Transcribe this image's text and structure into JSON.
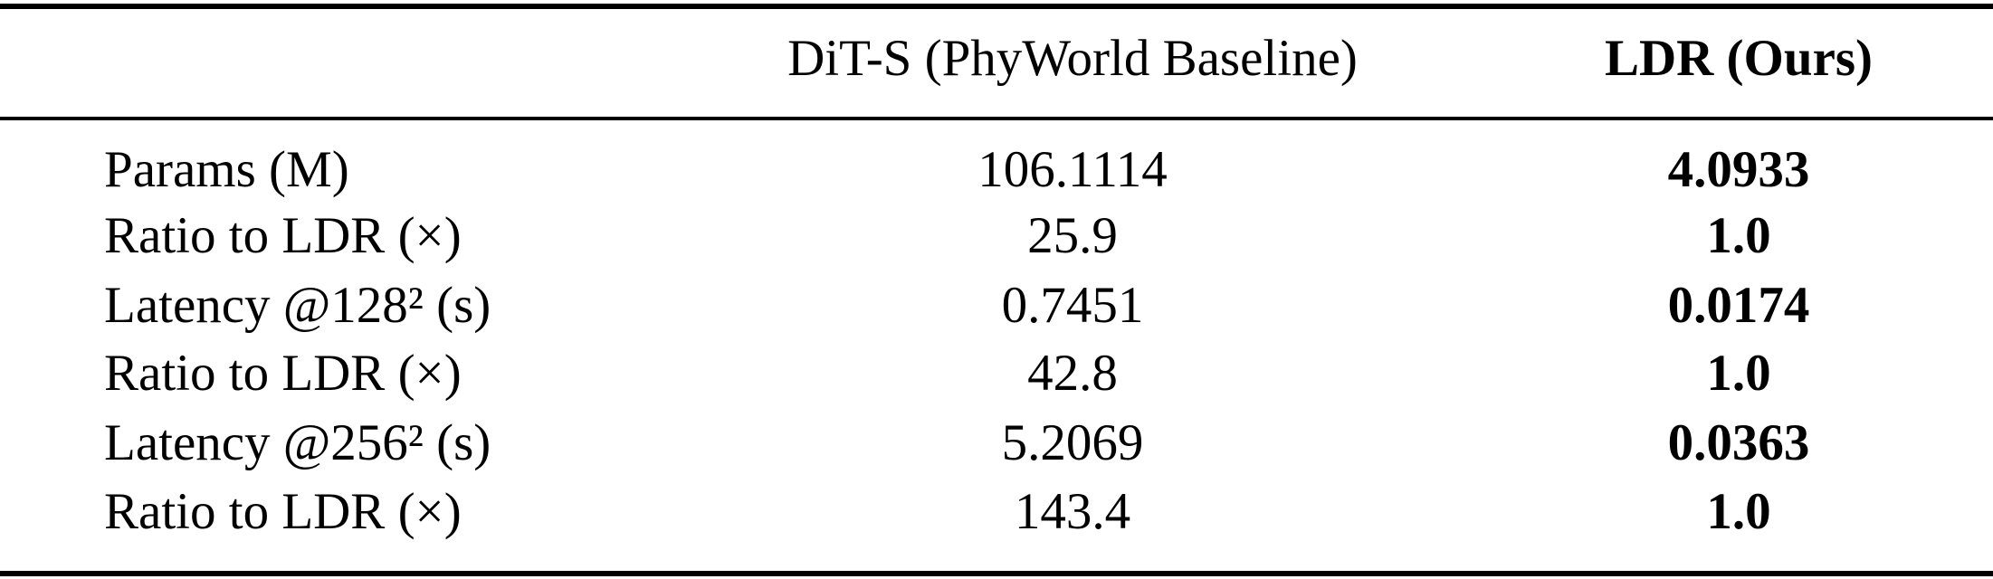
{
  "table": {
    "header": [
      "DiT-S (PhyWorld Baseline)",
      "LDR (Ours)"
    ],
    "rows": [
      [
        "Params (M)",
        "106.1114",
        "4.0933"
      ],
      [
        "Ratio to LDR (×)",
        "25.9",
        "1.0"
      ],
      [
        "Latency @128² (s)",
        "0.7451",
        "0.0174"
      ],
      [
        "Ratio to LDR (×)",
        "42.8",
        "1.0"
      ],
      [
        "Latency @256² (s)",
        "5.2069",
        "0.0363"
      ],
      [
        "Ratio to LDR (×)",
        "143.4",
        "1.0"
      ]
    ]
  }
}
